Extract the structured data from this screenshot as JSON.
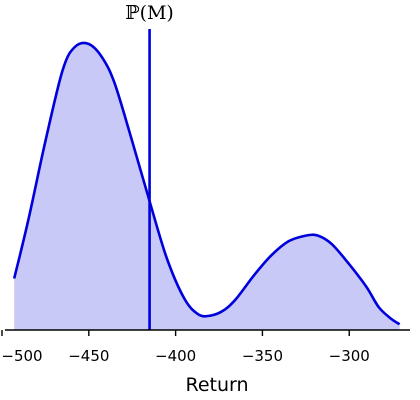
{
  "chart_data": {
    "type": "area",
    "xlabel": "Return",
    "ylabel": "",
    "xlim": [
      -500,
      -265
    ],
    "ylim": [
      0,
      1.08
    ],
    "x_ticks": [
      -500,
      -450,
      -400,
      -350,
      -300
    ],
    "x_tick_labels": [
      "−500",
      "−450",
      "−400",
      "−350",
      "−300"
    ],
    "grid": false,
    "series": [
      {
        "x": [
          -493,
          -485,
          -475,
          -465,
          -458,
          -450,
          -442,
          -435,
          -425,
          -415,
          -405,
          -395,
          -387,
          -380,
          -372,
          -365,
          -355,
          -345,
          -335,
          -325,
          -318,
          -310,
          -300,
          -290,
          -283,
          -276,
          -271
        ],
        "y": [
          0.18,
          0.38,
          0.66,
          0.91,
          0.99,
          1.0,
          0.95,
          0.86,
          0.66,
          0.45,
          0.25,
          0.11,
          0.055,
          0.05,
          0.07,
          0.11,
          0.19,
          0.26,
          0.31,
          0.33,
          0.33,
          0.3,
          0.23,
          0.15,
          0.08,
          0.04,
          0.02
        ]
      }
    ],
    "markers": [
      {
        "x": -415,
        "label": "ℙ(M)"
      }
    ],
    "colors": {
      "line": "#0000dd",
      "fill": "#c9c9f7",
      "axis": "#000000"
    }
  }
}
